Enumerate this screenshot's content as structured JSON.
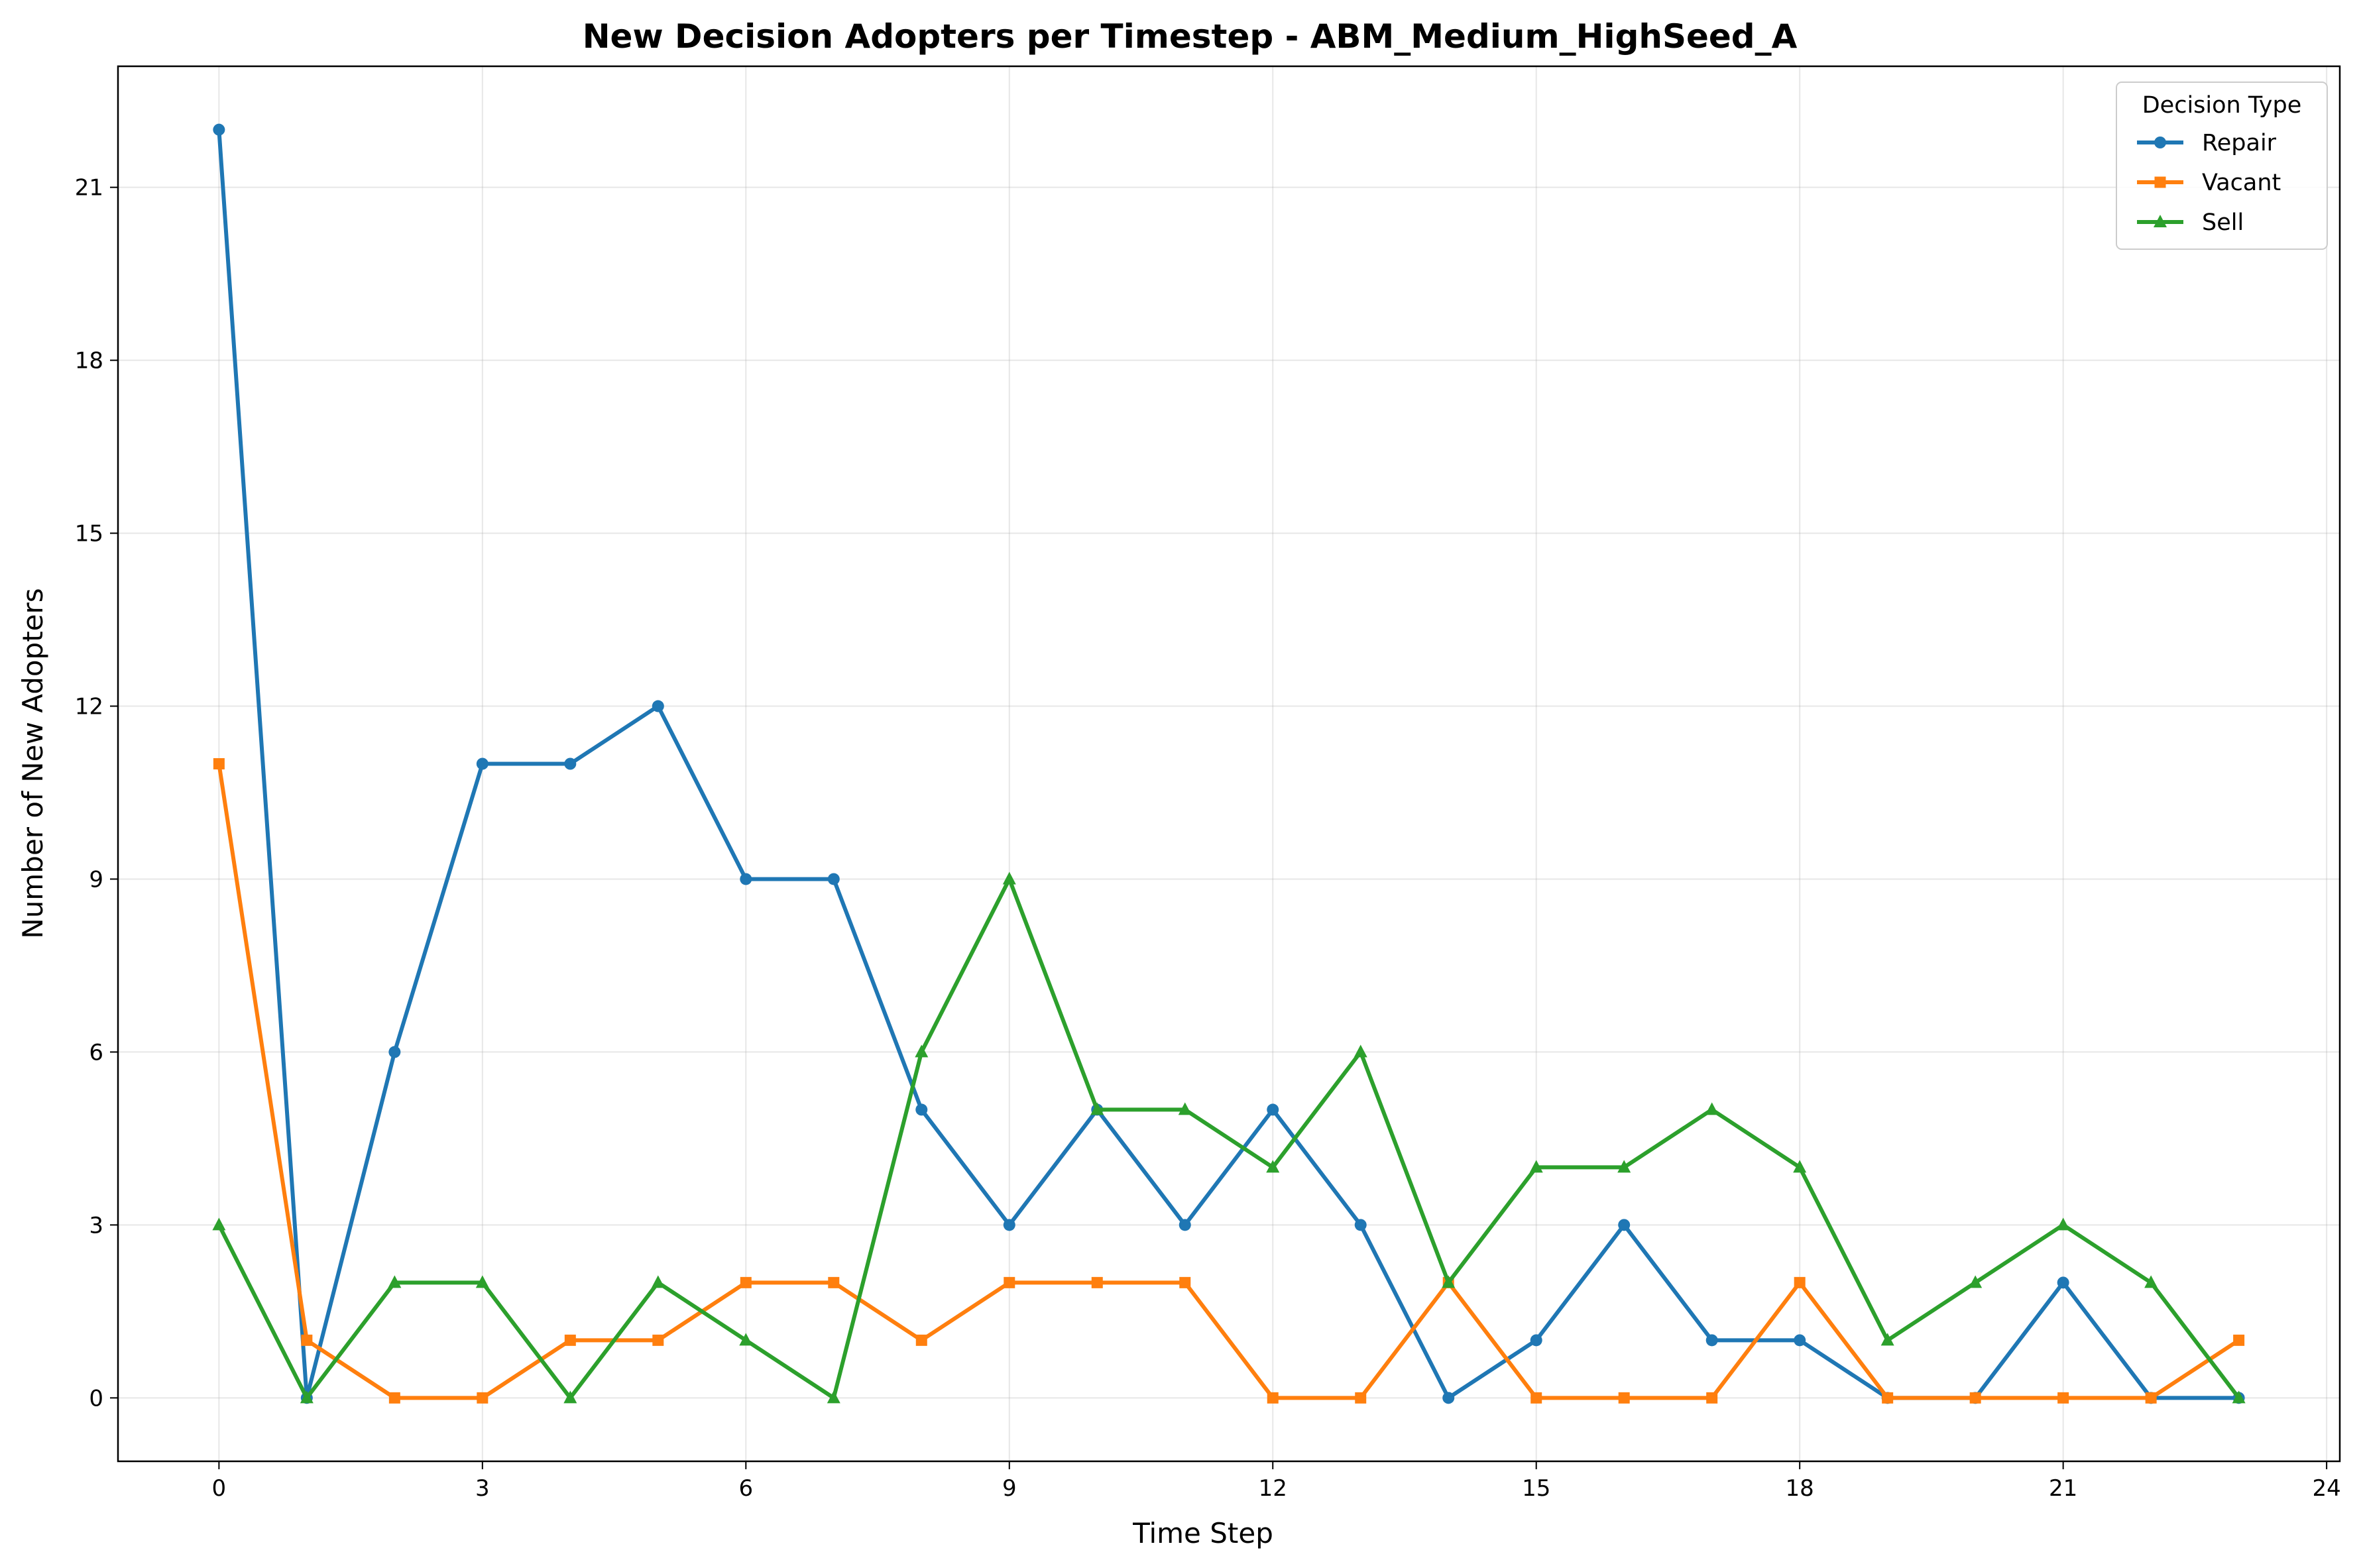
{
  "chart_data": {
    "type": "line",
    "title": "New Decision Adopters per Timestep - ABM_Medium_HighSeed_A",
    "xlabel": "Time Step",
    "ylabel": "Number of New Adopters",
    "xlim": [
      -1.15,
      24.15
    ],
    "ylim": [
      -1.1,
      23.1
    ],
    "xticks": [
      0,
      3,
      6,
      9,
      12,
      15,
      18,
      21,
      24
    ],
    "yticks": [
      0,
      3,
      6,
      9,
      12,
      15,
      18,
      21
    ],
    "grid": true,
    "legend": {
      "title": "Decision Type",
      "placement": "top-right"
    },
    "x": [
      0,
      1,
      2,
      3,
      4,
      5,
      6,
      7,
      8,
      9,
      10,
      11,
      12,
      13,
      14,
      15,
      16,
      17,
      18,
      19,
      20,
      21,
      22,
      23
    ],
    "series": [
      {
        "name": "Repair",
        "color": "#1f77b4",
        "marker": "circle",
        "values": [
          22,
          0,
          6,
          11,
          11,
          12,
          9,
          9,
          5,
          3,
          5,
          3,
          5,
          3,
          0,
          1,
          3,
          1,
          1,
          0,
          0,
          2,
          0,
          0
        ]
      },
      {
        "name": "Vacant",
        "color": "#ff7f0e",
        "marker": "square",
        "values": [
          11,
          1,
          0,
          0,
          1,
          1,
          2,
          2,
          1,
          2,
          2,
          2,
          0,
          0,
          2,
          0,
          0,
          0,
          2,
          0,
          0,
          0,
          0,
          1
        ]
      },
      {
        "name": "Sell",
        "color": "#2ca02c",
        "marker": "triangle",
        "values": [
          3,
          0,
          2,
          2,
          0,
          2,
          1,
          0,
          6,
          9,
          5,
          5,
          4,
          6,
          2,
          4,
          4,
          5,
          4,
          1,
          2,
          3,
          2,
          0
        ]
      }
    ]
  }
}
